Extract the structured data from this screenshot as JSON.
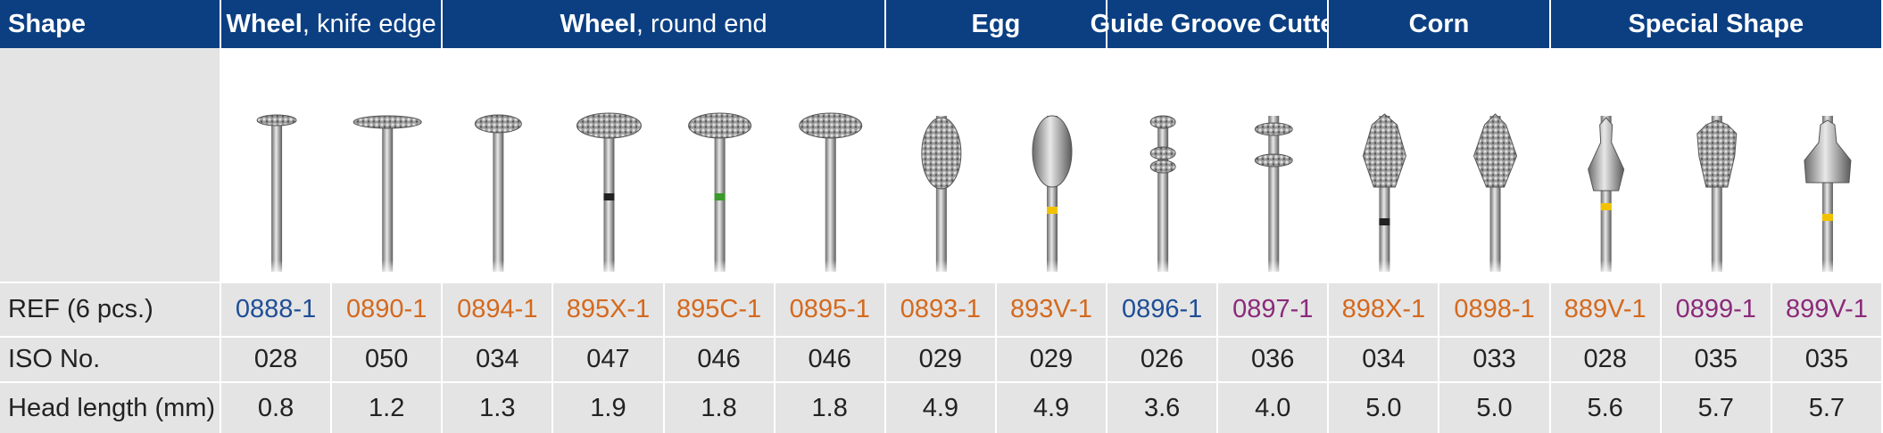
{
  "header": {
    "shape_label": "Shape",
    "groups": [
      {
        "bold": "Wheel",
        "rest": ", knife edge",
        "items": [
          {
            "ref": "0888-1",
            "color": "#1f4e96",
            "iso": "028",
            "head_length": "0.8"
          },
          {
            "ref": "0890-1",
            "color": "#d4691e",
            "iso": "050",
            "head_length": "1.2"
          }
        ]
      },
      {
        "bold": "Wheel",
        "rest": ", round end",
        "items": [
          {
            "ref": "0894-1",
            "color": "#d4691e",
            "iso": "034",
            "head_length": "1.3"
          },
          {
            "ref": "895X-1",
            "color": "#d4691e",
            "iso": "047",
            "head_length": "1.9"
          },
          {
            "ref": "895C-1",
            "color": "#d4691e",
            "iso": "046",
            "head_length": "1.8"
          },
          {
            "ref": "0895-1",
            "color": "#d4691e",
            "iso": "046",
            "head_length": "1.8"
          }
        ]
      },
      {
        "bold": "Egg",
        "items": [
          {
            "ref": "0893-1",
            "color": "#d4691e",
            "iso": "029",
            "head_length": "4.9"
          },
          {
            "ref": "893V-1",
            "color": "#d4691e",
            "iso": "029",
            "head_length": "4.9"
          }
        ]
      },
      {
        "bold": "Guide Groove Cutter",
        "items": [
          {
            "ref": "0896-1",
            "color": "#1f4e96",
            "iso": "026",
            "head_length": "3.6"
          },
          {
            "ref": "0897-1",
            "color": "#8b2a7a",
            "iso": "036",
            "head_length": "4.0"
          }
        ]
      },
      {
        "bold": "Corn",
        "items": [
          {
            "ref": "898X-1",
            "color": "#d4691e",
            "iso": "034",
            "head_length": "5.0"
          },
          {
            "ref": "0898-1",
            "color": "#d4691e",
            "iso": "033",
            "head_length": "5.0"
          }
        ]
      },
      {
        "bold": "Special Shape",
        "items": [
          {
            "ref": "889V-1",
            "color": "#d4691e",
            "iso": "028",
            "head_length": "5.6"
          },
          {
            "ref": "0899-1",
            "color": "#8b2a7a",
            "iso": "035",
            "head_length": "5.7"
          },
          {
            "ref": "899V-1",
            "color": "#8b2a7a",
            "iso": "035",
            "head_length": "5.7"
          }
        ]
      }
    ]
  },
  "rows": {
    "ref": "REF (6 pcs.)",
    "iso": "ISO No.",
    "head_length": "Head length (mm)"
  }
}
